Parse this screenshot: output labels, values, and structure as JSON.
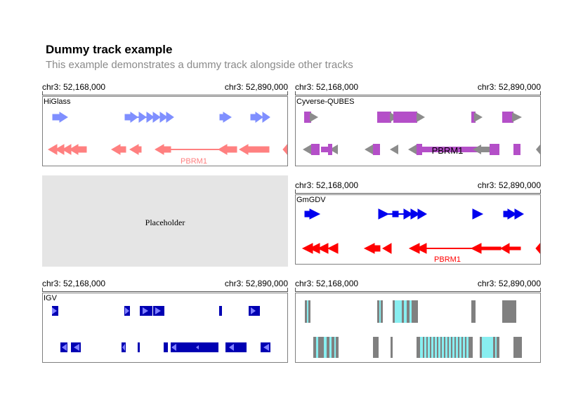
{
  "header": {
    "title": "Dummy track example",
    "subtitle": "This example demonstrates a dummy track alongside other tracks"
  },
  "axis": {
    "start": "chr3: 52,168,000",
    "end": "chr3: 52,890,000"
  },
  "placeholder": {
    "text": "Placeholder"
  },
  "panels": {
    "higlass": {
      "track_title": "HiGlass",
      "gene_label": "PBRM1",
      "colors": {
        "plus": "#7f8fff",
        "minus": "#ff8080",
        "gene_label": "#ff8080"
      }
    },
    "cyverse": {
      "track_title": "Cyverse-QUBES",
      "gene_label": "PBRM1",
      "colors": {
        "exon": "#b44fc8",
        "arrow": "#8c8c8c",
        "gene_label": "#000000"
      }
    },
    "gmgdv": {
      "track_title": "GmGDV",
      "gene_label": "PBRM1",
      "colors": {
        "plus": "#0000ee",
        "minus": "#ff0000",
        "gene_label": "#ff0000"
      }
    },
    "igv": {
      "track_title": "IGV",
      "colors": {
        "exon": "#0000b3",
        "arrow": "#8080ff"
      }
    },
    "lollipop": {
      "colors": {
        "exon": "#808080",
        "highlight": "#88eef0"
      }
    }
  }
}
